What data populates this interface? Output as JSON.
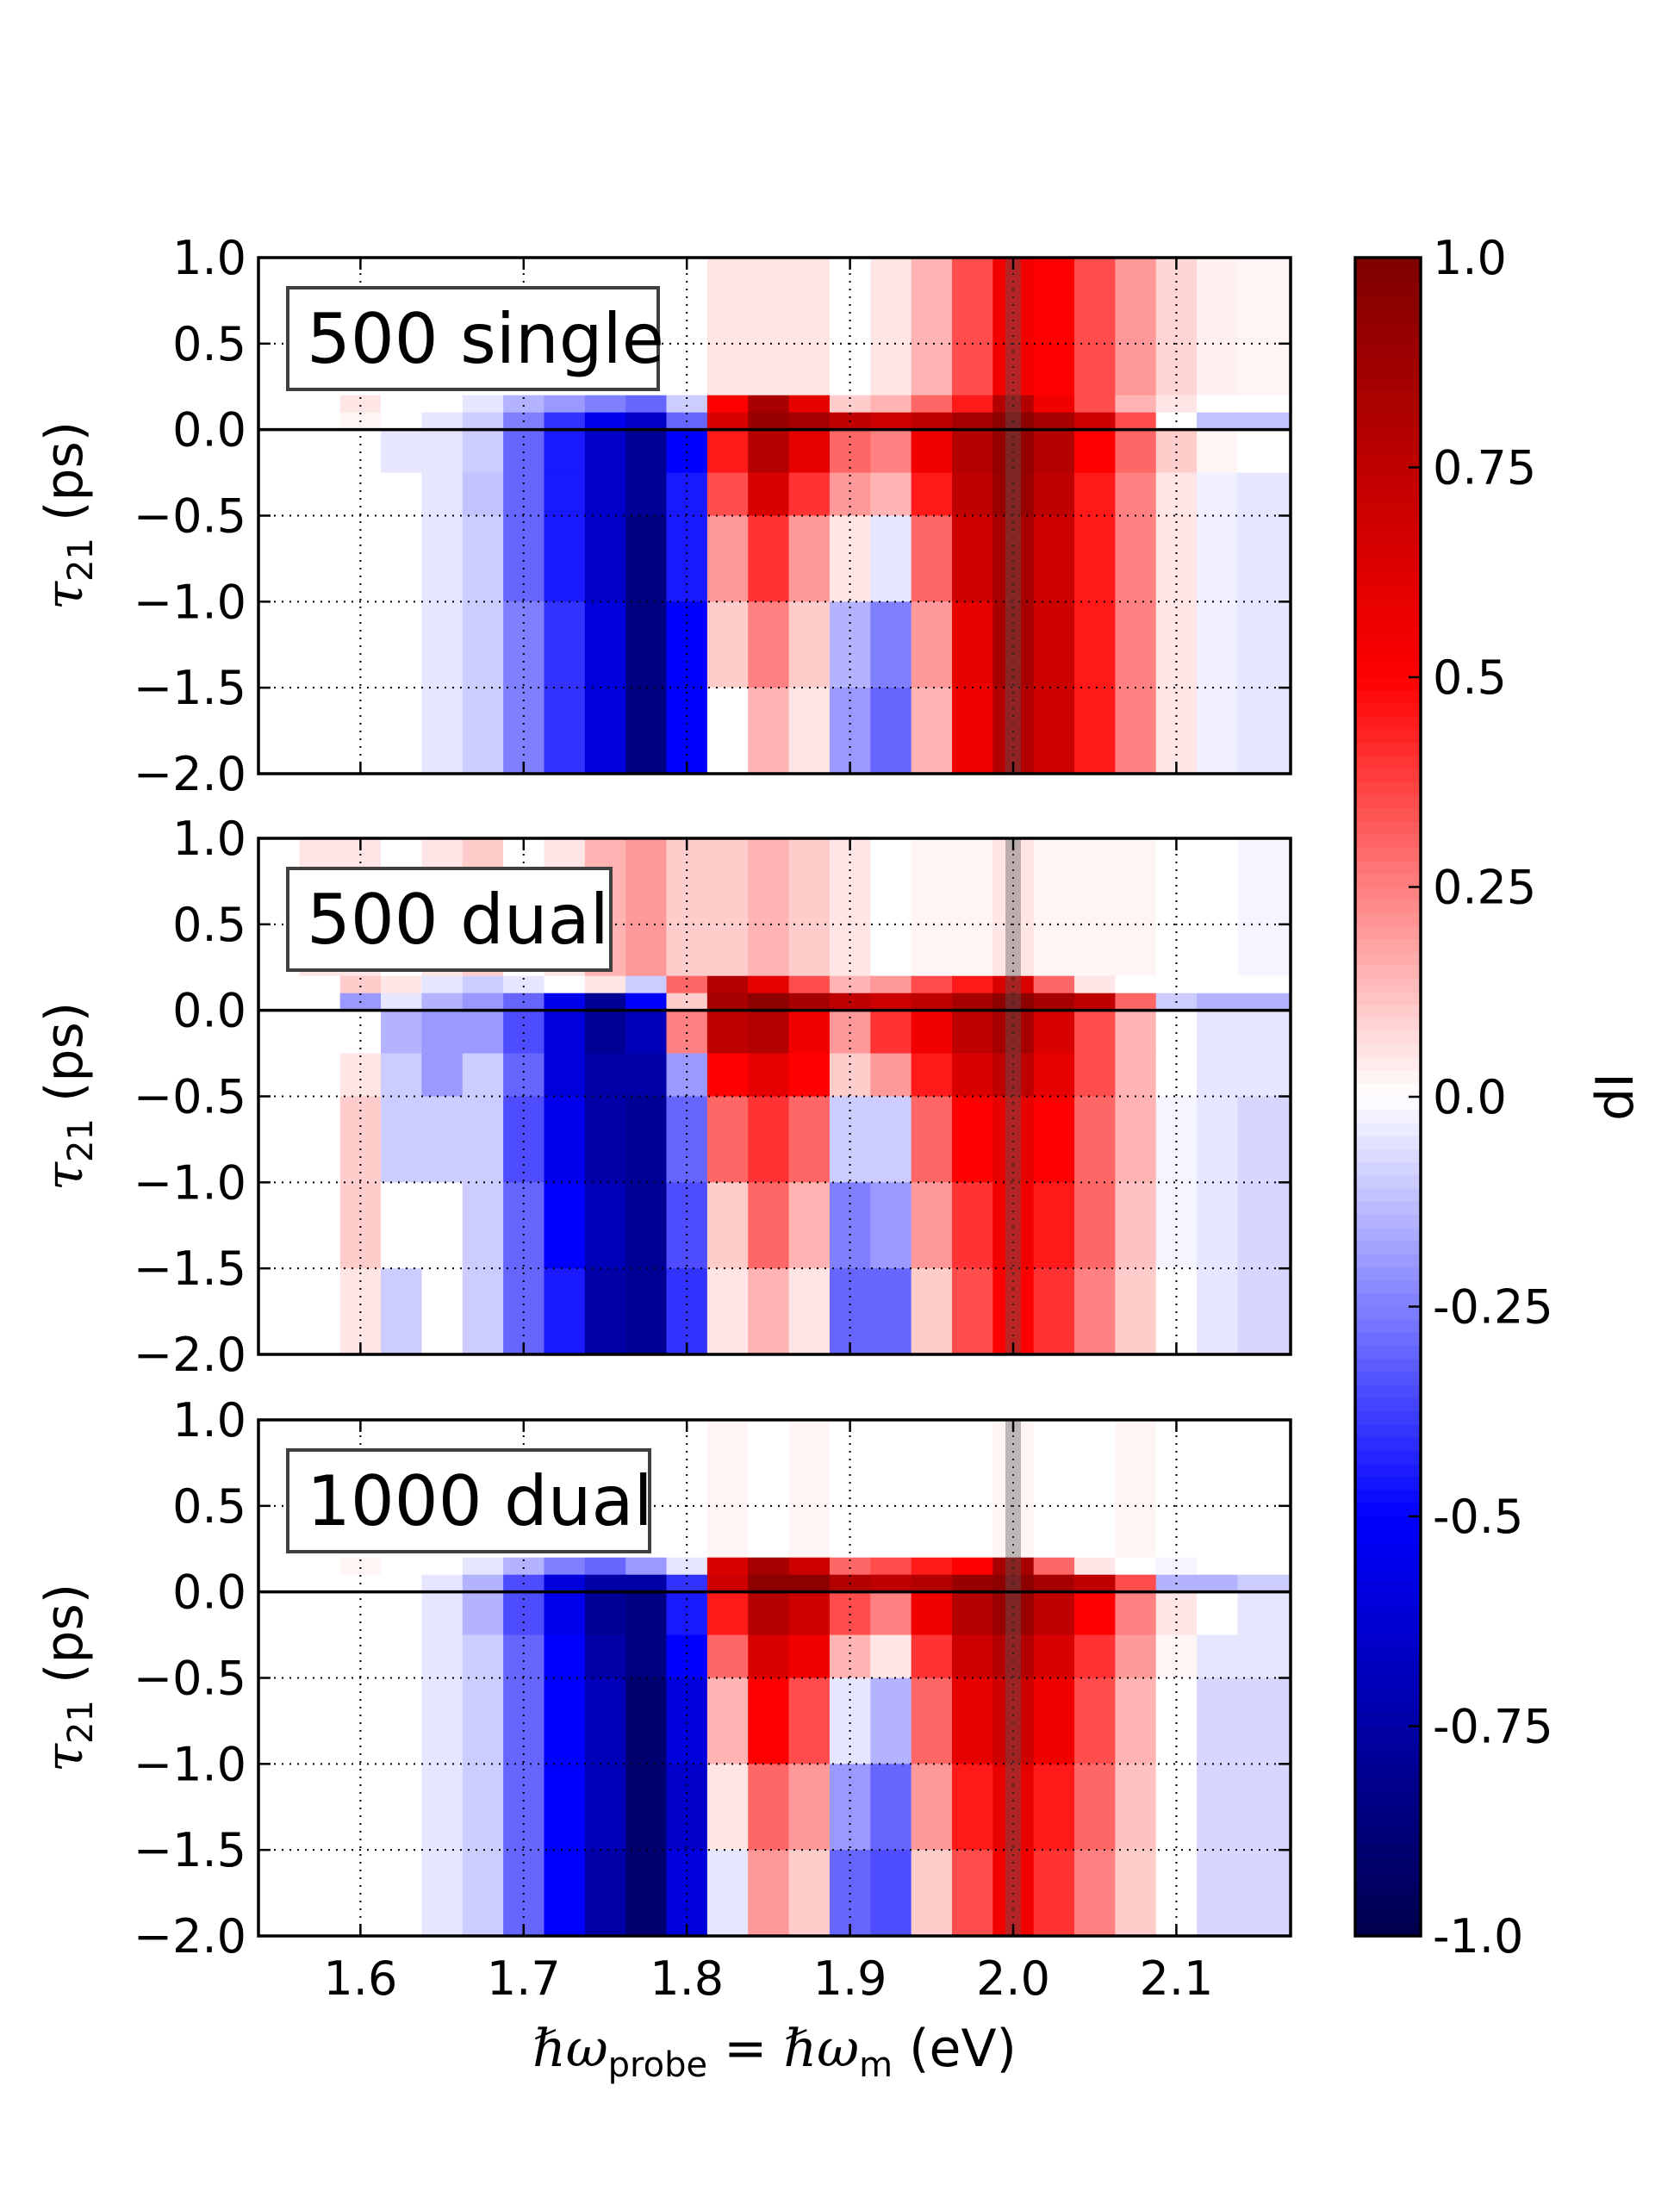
{
  "chart_data": {
    "type": "heatmap",
    "xlabel": {
      "hbar1": "ℏω",
      "sub1": "probe",
      "eq": " = ",
      "hbar2": "ℏω",
      "sub2": "m",
      "unit": " (eV)"
    },
    "ylabel": {
      "sym": "τ",
      "sub": "21",
      "unit": " (ps)"
    },
    "xlim": [
      1.5375,
      2.17
    ],
    "ylim": [
      -2.0,
      1.0
    ],
    "x_ticks": [
      "1.6",
      "1.7",
      "1.8",
      "1.9",
      "2.0",
      "2.1"
    ],
    "x_tick_values": [
      1.6,
      1.7,
      1.8,
      1.9,
      2.0,
      2.1
    ],
    "y_ticks": [
      "1.0",
      "0.5",
      "0.0",
      "−0.5",
      "−1.0",
      "−1.5",
      "−2.0"
    ],
    "y_tick_values": [
      1.0,
      0.5,
      0.0,
      -0.5,
      -1.0,
      -1.5,
      -2.0
    ],
    "grid": true,
    "colormap": "seismic",
    "colorbar": {
      "label": "dI",
      "range": [
        -1.0,
        1.0
      ],
      "ticks": [
        "1.0",
        "0.75",
        "0.5",
        "0.25",
        "0.0",
        "-0.25",
        "-0.5",
        "-0.75",
        "-1.0"
      ],
      "tick_values": [
        1.0,
        0.75,
        0.5,
        0.25,
        0.0,
        -0.25,
        -0.5,
        -0.75,
        -1.0
      ]
    },
    "marker_line_x": 2.0,
    "zero_line_y": 0.0,
    "x_bin_centers": [
      1.55,
      1.575,
      1.6,
      1.625,
      1.65,
      1.675,
      1.7,
      1.725,
      1.75,
      1.775,
      1.8,
      1.825,
      1.85,
      1.875,
      1.9,
      1.925,
      1.95,
      1.975,
      2.0,
      2.025,
      2.05,
      2.075,
      2.1,
      2.125,
      2.15
    ],
    "y_bins": [
      [
        1.0,
        0.2
      ],
      [
        0.2,
        0.1
      ],
      [
        0.1,
        0.0
      ],
      [
        0.0,
        -0.25
      ],
      [
        -0.25,
        -0.5
      ],
      [
        -0.5,
        -1.0
      ],
      [
        -1.0,
        -1.5
      ],
      [
        -1.5,
        -2.0
      ]
    ],
    "panels": [
      {
        "legend": "500 single",
        "values": [
          [
            0,
            0,
            0,
            0,
            0,
            0,
            0,
            0,
            0,
            0,
            0,
            0.05,
            0.05,
            0.05,
            0,
            0.05,
            0.15,
            0.35,
            0.55,
            0.5,
            0.35,
            0.2,
            0.08,
            0.03,
            0.02
          ],
          [
            0,
            0,
            0.05,
            0,
            0,
            -0.05,
            -0.15,
            -0.2,
            -0.25,
            -0.3,
            -0.1,
            0.5,
            0.85,
            0.6,
            0.1,
            0.15,
            0.3,
            0.45,
            0.8,
            0.55,
            0.35,
            0.15,
            0.05,
            0,
            0
          ],
          [
            0,
            0,
            0.02,
            0,
            -0.05,
            -0.1,
            -0.25,
            -0.4,
            -0.55,
            -0.65,
            -0.3,
            0.65,
            0.9,
            0.85,
            0.75,
            0.7,
            0.75,
            0.85,
            0.95,
            0.85,
            0.7,
            0.35,
            0,
            -0.12,
            -0.12
          ],
          [
            0,
            0,
            0,
            -0.05,
            -0.05,
            -0.1,
            -0.3,
            -0.45,
            -0.65,
            -0.8,
            -0.5,
            0.45,
            0.8,
            0.6,
            0.3,
            0.25,
            0.55,
            0.8,
            0.92,
            0.8,
            0.5,
            0.3,
            0.1,
            0.02,
            0
          ],
          [
            0,
            0,
            0,
            0,
            -0.05,
            -0.12,
            -0.3,
            -0.45,
            -0.65,
            -0.8,
            -0.45,
            0.35,
            0.65,
            0.4,
            0.2,
            0.15,
            0.45,
            0.75,
            0.9,
            0.75,
            0.45,
            0.25,
            0.05,
            -0.03,
            -0.05
          ],
          [
            0,
            0,
            0,
            0,
            -0.05,
            -0.1,
            -0.3,
            -0.45,
            -0.65,
            -0.85,
            -0.45,
            0.2,
            0.4,
            0.2,
            0.05,
            -0.05,
            0.3,
            0.7,
            0.85,
            0.7,
            0.45,
            0.25,
            0.05,
            -0.03,
            -0.05
          ],
          [
            0,
            0,
            0,
            0,
            -0.05,
            -0.1,
            -0.25,
            -0.4,
            -0.6,
            -0.85,
            -0.5,
            0.1,
            0.25,
            0.1,
            -0.15,
            -0.25,
            0.2,
            0.6,
            0.85,
            0.7,
            0.45,
            0.25,
            0.05,
            -0.03,
            -0.05
          ],
          [
            0,
            0,
            0,
            0,
            -0.05,
            -0.1,
            -0.25,
            -0.4,
            -0.6,
            -0.85,
            -0.5,
            0,
            0.15,
            0.05,
            -0.2,
            -0.3,
            0.15,
            0.55,
            0.8,
            0.7,
            0.45,
            0.25,
            0.05,
            -0.03,
            -0.05
          ]
        ]
      },
      {
        "legend": "500 dual",
        "values": [
          [
            0,
            0.05,
            0.05,
            0,
            0.05,
            0.1,
            0,
            0.05,
            0.15,
            0.2,
            0.1,
            0.1,
            0.15,
            0.1,
            0.05,
            0,
            0.02,
            0.02,
            0.05,
            0.02,
            0.02,
            0.02,
            0,
            0,
            -0.02
          ],
          [
            0,
            0,
            0.1,
            0.05,
            -0.05,
            -0.1,
            -0.05,
            0,
            0.05,
            -0.1,
            0.3,
            0.8,
            0.6,
            0.35,
            0.15,
            0.2,
            0.35,
            0.45,
            0.65,
            0.3,
            0.05,
            0,
            0,
            0,
            0
          ],
          [
            0,
            0,
            -0.2,
            -0.05,
            -0.15,
            -0.2,
            -0.3,
            -0.55,
            -0.8,
            -0.5,
            0.1,
            0.85,
            0.95,
            0.85,
            0.75,
            0.7,
            0.75,
            0.85,
            0.95,
            0.85,
            0.75,
            0.3,
            -0.1,
            -0.15,
            -0.15
          ],
          [
            0,
            0,
            0,
            -0.15,
            -0.2,
            -0.2,
            -0.35,
            -0.6,
            -0.8,
            -0.7,
            0.25,
            0.75,
            0.8,
            0.55,
            0.2,
            0.4,
            0.55,
            0.75,
            0.85,
            0.65,
            0.35,
            0.15,
            0,
            -0.05,
            -0.05
          ],
          [
            0,
            0,
            0.05,
            -0.1,
            -0.2,
            -0.1,
            -0.3,
            -0.6,
            -0.75,
            -0.75,
            -0.2,
            0.5,
            0.6,
            0.5,
            0.1,
            0.2,
            0.45,
            0.65,
            0.75,
            0.6,
            0.35,
            0.15,
            0,
            -0.05,
            -0.05
          ],
          [
            0,
            0,
            0.1,
            -0.1,
            -0.1,
            -0.1,
            -0.35,
            -0.55,
            -0.75,
            -0.8,
            -0.3,
            0.3,
            0.4,
            0.3,
            -0.1,
            -0.1,
            0.3,
            0.5,
            0.6,
            0.5,
            0.3,
            0.15,
            -0.02,
            -0.05,
            -0.08
          ],
          [
            0,
            0,
            0.1,
            0,
            0,
            -0.1,
            -0.3,
            -0.5,
            -0.7,
            -0.8,
            -0.35,
            0.1,
            0.3,
            0.15,
            -0.25,
            -0.2,
            0.2,
            0.4,
            0.55,
            0.45,
            0.3,
            0.12,
            -0.02,
            -0.05,
            -0.08
          ],
          [
            0,
            0,
            0.05,
            -0.1,
            0,
            -0.1,
            -0.3,
            -0.45,
            -0.75,
            -0.8,
            -0.4,
            0.05,
            0.15,
            0.05,
            -0.3,
            -0.3,
            0.1,
            0.35,
            0.5,
            0.4,
            0.25,
            0.1,
            0,
            -0.05,
            -0.08
          ]
        ]
      },
      {
        "legend": "1000 dual",
        "values": [
          [
            0,
            0,
            0,
            0,
            0,
            0,
            0,
            0,
            0,
            0,
            0,
            0.02,
            0,
            0.02,
            0,
            0,
            0,
            0,
            0.02,
            0,
            0,
            0.02,
            0,
            0,
            0
          ],
          [
            0,
            0,
            0.02,
            0,
            0,
            -0.05,
            -0.15,
            -0.25,
            -0.3,
            -0.2,
            -0.05,
            0.65,
            0.85,
            0.7,
            0.3,
            0.35,
            0.45,
            0.5,
            0.85,
            0.3,
            0.05,
            0,
            -0.02,
            0,
            0
          ],
          [
            0,
            0,
            0,
            0,
            -0.05,
            -0.15,
            -0.35,
            -0.6,
            -0.75,
            -0.75,
            -0.4,
            0.7,
            0.95,
            0.95,
            0.8,
            0.75,
            0.8,
            0.9,
            0.95,
            0.85,
            0.75,
            0.35,
            -0.15,
            -0.15,
            -0.1
          ],
          [
            0,
            0,
            0,
            0,
            -0.05,
            -0.15,
            -0.35,
            -0.55,
            -0.8,
            -0.85,
            -0.45,
            0.45,
            0.8,
            0.7,
            0.35,
            0.25,
            0.55,
            0.8,
            0.9,
            0.75,
            0.5,
            0.25,
            0.05,
            0,
            -0.05
          ],
          [
            0,
            0,
            0,
            0,
            -0.05,
            -0.1,
            -0.3,
            -0.5,
            -0.75,
            -0.85,
            -0.5,
            0.3,
            0.65,
            0.55,
            0.15,
            0.05,
            0.4,
            0.7,
            0.8,
            0.65,
            0.4,
            0.2,
            0.02,
            -0.05,
            -0.05
          ],
          [
            0,
            0,
            0,
            0,
            -0.05,
            -0.1,
            -0.3,
            -0.5,
            -0.7,
            -0.9,
            -0.6,
            0.15,
            0.5,
            0.35,
            -0.05,
            -0.15,
            0.3,
            0.6,
            0.7,
            0.55,
            0.35,
            0.15,
            0,
            -0.08,
            -0.08
          ],
          [
            0,
            0,
            0,
            0,
            -0.05,
            -0.1,
            -0.3,
            -0.5,
            -0.7,
            -0.9,
            -0.65,
            0.05,
            0.3,
            0.2,
            -0.2,
            -0.3,
            0.2,
            0.45,
            0.6,
            0.45,
            0.3,
            0.12,
            0,
            -0.08,
            -0.08
          ],
          [
            0,
            0,
            0,
            0,
            -0.05,
            -0.1,
            -0.3,
            -0.5,
            -0.75,
            -0.9,
            -0.6,
            -0.05,
            0.2,
            0.1,
            -0.3,
            -0.35,
            0.1,
            0.35,
            0.55,
            0.4,
            0.25,
            0.1,
            0,
            -0.08,
            -0.08
          ]
        ]
      }
    ]
  }
}
